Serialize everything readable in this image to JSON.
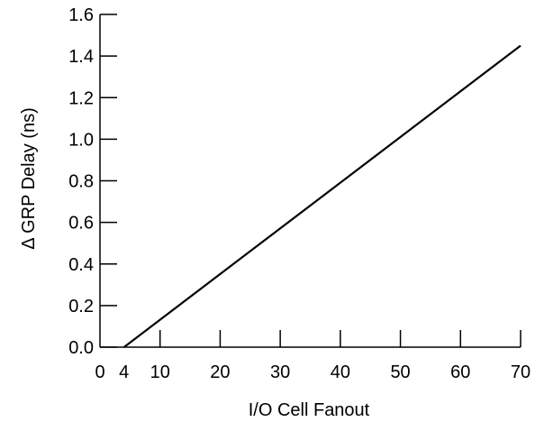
{
  "chart_data": {
    "type": "line",
    "title": "",
    "xlabel": "I/O Cell Fanout",
    "ylabel": "Δ GRP Delay (ns)",
    "xlim": [
      0,
      70
    ],
    "ylim": [
      0.0,
      1.6
    ],
    "x_ticks": [
      0,
      4,
      10,
      20,
      30,
      40,
      50,
      60,
      70
    ],
    "x_tick_labels": [
      "0",
      "4",
      "10",
      "20",
      "30",
      "40",
      "50",
      "60",
      "70"
    ],
    "y_ticks": [
      0.0,
      0.2,
      0.4,
      0.6,
      0.8,
      1.0,
      1.2,
      1.4,
      1.6
    ],
    "y_tick_labels": [
      "0.0",
      "0.2",
      "0.4",
      "0.6",
      "0.8",
      "1.0",
      "1.2",
      "1.4",
      "1.6"
    ],
    "grid": false,
    "series": [
      {
        "x": [
          4,
          70
        ],
        "y": [
          0.0,
          1.45
        ]
      }
    ]
  }
}
